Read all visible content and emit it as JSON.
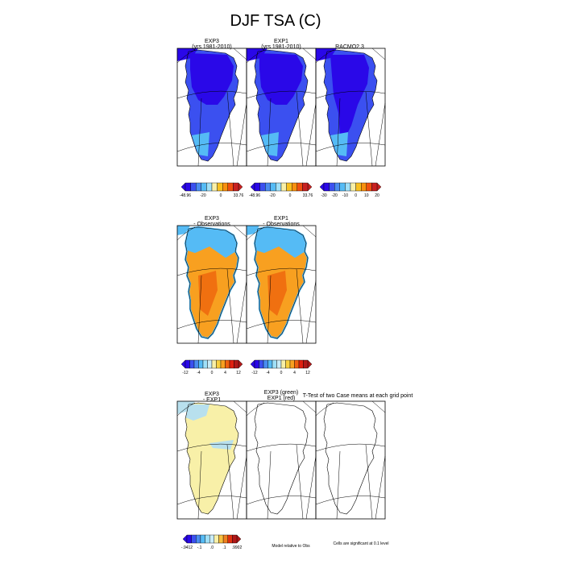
{
  "title": "DJF TSA (C)",
  "colors": {
    "scale_temp": [
      "#2a08e8",
      "#3b50f0",
      "#4a8cf0",
      "#55bbf5",
      "#9fe0f8",
      "#f8f0a8",
      "#f8c020",
      "#f89010",
      "#f05010",
      "#c82020"
    ],
    "scale_bias": [
      "#2a08e8",
      "#3b50f0",
      "#4a8cf0",
      "#55bbf5",
      "#9fe0f8",
      "#c8ecf8",
      "#f8f0a8",
      "#f8d040",
      "#f8a020",
      "#f06010",
      "#e02010",
      "#b01818"
    ],
    "scale_diff": [
      "#2a08e8",
      "#3b50f0",
      "#4a8cf0",
      "#55bbf5",
      "#9fe0f8",
      "#c8ecf8",
      "#f8f0a8",
      "#f8c040",
      "#f08020",
      "#e03010",
      "#b01818"
    ],
    "ice_sheet": "#2a08e8",
    "coast": "#3b50f0",
    "bias_base": "#f8a020",
    "bias_high": "#f07010",
    "bias_coast": "#55bbf5",
    "diff_base": "#f8f0a8",
    "diff_cool": "#b8e0ee"
  },
  "row1": {
    "panels": [
      {
        "title_line1": "EXP3",
        "title_line2": "(yrs 1981-2010)"
      },
      {
        "title_line1": "EXP1",
        "title_line2": "(yrs 1981-2010)"
      },
      {
        "title_line1": "RACMO2.3",
        "title_line2": ""
      }
    ],
    "colorbars": [
      {
        "labels": [
          "-48.96",
          "-20",
          "0",
          "33.76"
        ]
      },
      {
        "labels": [
          "-48.96",
          "-20",
          "0",
          "33.76"
        ]
      },
      {
        "labels": [
          "-30",
          "-20",
          "-10",
          "0",
          "10",
          "20"
        ]
      }
    ]
  },
  "row2": {
    "panels": [
      {
        "title_line1": "EXP3",
        "title_line2": "- Observations"
      },
      {
        "title_line1": "EXP1",
        "title_line2": "- Observations"
      }
    ],
    "colorbars": [
      {
        "labels": [
          "-12",
          "-4",
          "0",
          "4",
          "12"
        ]
      },
      {
        "labels": [
          "-12",
          "-4",
          "0",
          "4",
          "12"
        ]
      }
    ]
  },
  "row3": {
    "panels": [
      {
        "title_line1": "EXP3",
        "title_line2": "- EXP1"
      },
      {
        "title_line1": "EXP3 (green)",
        "title_line2": "EXP1 (red)"
      },
      {
        "title_line1": "",
        "title_line2": ""
      }
    ],
    "ttest_title": "T-Test of two Case means at each grid point",
    "colorbar": {
      "labels": [
        "-.9412",
        "-.1",
        ".0",
        ".1",
        ".9902"
      ]
    },
    "note_model": "Model relative to Obs",
    "note_cells": "Cells are significant at 0.1 level"
  }
}
